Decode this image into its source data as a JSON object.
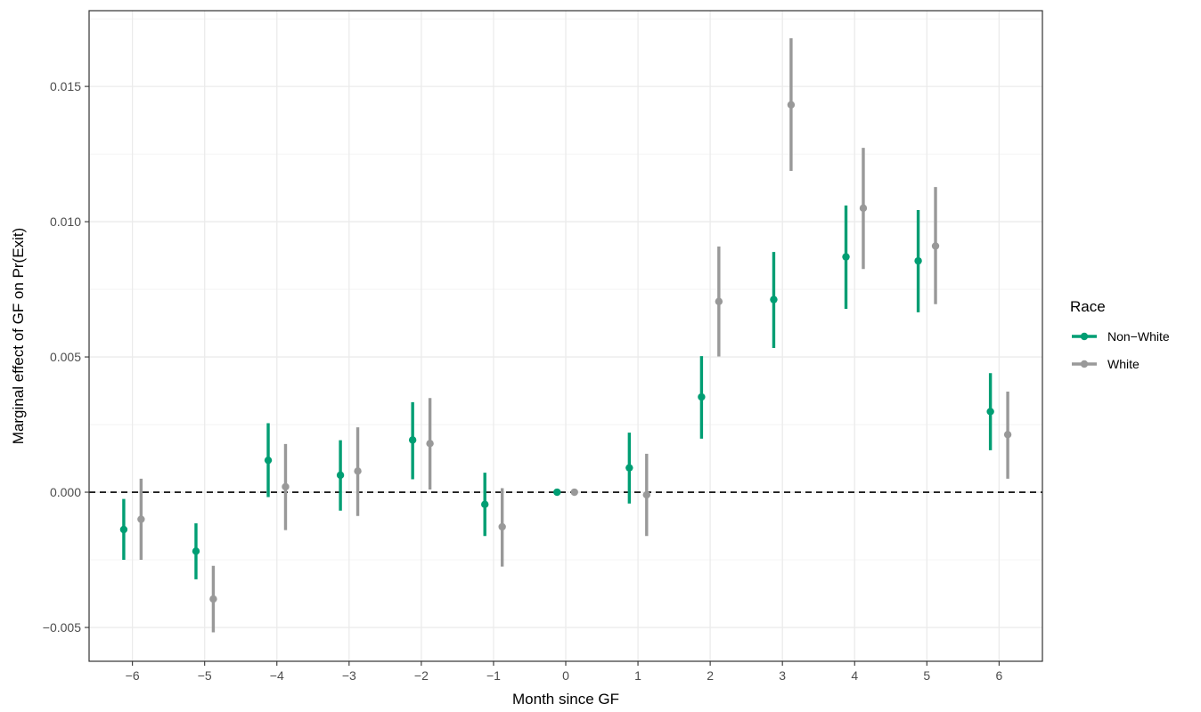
{
  "chart_data": {
    "type": "scatter",
    "subtype": "point-range",
    "xlabel": "Month since GF",
    "ylabel": "Marginal effect of GF on Pr(Exit)",
    "xlim": [
      -6.6,
      6.6
    ],
    "ylim": [
      -0.00625,
      0.0178
    ],
    "x_ticks": [
      -6,
      -5,
      -4,
      -3,
      -2,
      -1,
      0,
      1,
      2,
      3,
      4,
      5,
      6
    ],
    "x_tick_labels": [
      "−6",
      "−5",
      "−4",
      "−3",
      "−2",
      "−1",
      "0",
      "1",
      "2",
      "3",
      "4",
      "5",
      "6"
    ],
    "y_ticks": [
      -0.005,
      0.0,
      0.005,
      0.01,
      0.015
    ],
    "y_tick_labels": [
      "−0.005",
      "0.000",
      "0.005",
      "0.010",
      "0.015"
    ],
    "reference_line": {
      "y": 0,
      "style": "dashed"
    },
    "grid": true,
    "legend": {
      "title": "Race",
      "placement": "right"
    },
    "series": [
      {
        "name": "Non−White",
        "color": "#009E73",
        "dodge": -0.12,
        "points": [
          {
            "x": -6,
            "y": -0.00138,
            "lo": -0.0025,
            "hi": -0.00025
          },
          {
            "x": -5,
            "y": -0.00218,
            "lo": -0.00322,
            "hi": -0.00115
          },
          {
            "x": -4,
            "y": 0.00118,
            "lo": -0.00018,
            "hi": 0.00255
          },
          {
            "x": -3,
            "y": 0.00063,
            "lo": -0.00068,
            "hi": 0.00192
          },
          {
            "x": -2,
            "y": 0.00193,
            "lo": 0.00048,
            "hi": 0.00333
          },
          {
            "x": -1,
            "y": -0.00045,
            "lo": -0.00162,
            "hi": 0.00072
          },
          {
            "x": 0,
            "y": 0.0,
            "lo": 0.0,
            "hi": 0.0
          },
          {
            "x": 1,
            "y": 0.0009,
            "lo": -0.00042,
            "hi": 0.0022
          },
          {
            "x": 2,
            "y": 0.00352,
            "lo": 0.00198,
            "hi": 0.00503
          },
          {
            "x": 3,
            "y": 0.00712,
            "lo": 0.00533,
            "hi": 0.00888
          },
          {
            "x": 4,
            "y": 0.0087,
            "lo": 0.00678,
            "hi": 0.0106
          },
          {
            "x": 5,
            "y": 0.00855,
            "lo": 0.00665,
            "hi": 0.01043
          },
          {
            "x": 6,
            "y": 0.00298,
            "lo": 0.00155,
            "hi": 0.0044
          }
        ]
      },
      {
        "name": "White",
        "color": "#999999",
        "dodge": 0.12,
        "points": [
          {
            "x": -6,
            "y": -0.001,
            "lo": -0.0025,
            "hi": 0.0005
          },
          {
            "x": -5,
            "y": -0.00395,
            "lo": -0.00518,
            "hi": -0.00272
          },
          {
            "x": -4,
            "y": 0.0002,
            "lo": -0.0014,
            "hi": 0.00178
          },
          {
            "x": -3,
            "y": 0.00078,
            "lo": -0.00088,
            "hi": 0.0024
          },
          {
            "x": -2,
            "y": 0.0018,
            "lo": 0.0001,
            "hi": 0.00348
          },
          {
            "x": -1,
            "y": -0.00128,
            "lo": -0.00275,
            "hi": 0.00015
          },
          {
            "x": 0,
            "y": 0.0,
            "lo": 0.0,
            "hi": 0.0
          },
          {
            "x": 1,
            "y": -0.0001,
            "lo": -0.00162,
            "hi": 0.00142
          },
          {
            "x": 2,
            "y": 0.00705,
            "lo": 0.00502,
            "hi": 0.00908
          },
          {
            "x": 3,
            "y": 0.01432,
            "lo": 0.01188,
            "hi": 0.01678
          },
          {
            "x": 4,
            "y": 0.0105,
            "lo": 0.00825,
            "hi": 0.01273
          },
          {
            "x": 5,
            "y": 0.0091,
            "lo": 0.00695,
            "hi": 0.01128
          },
          {
            "x": 6,
            "y": 0.00213,
            "lo": 0.0005,
            "hi": 0.00372
          }
        ]
      }
    ]
  }
}
